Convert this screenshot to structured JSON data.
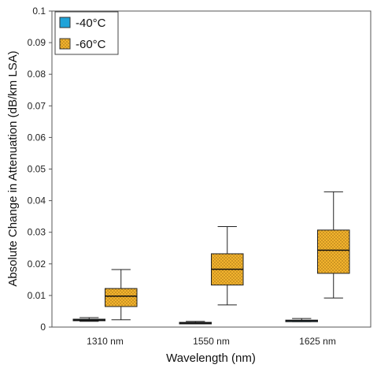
{
  "chart_data": {
    "type": "box",
    "title": "",
    "xlabel": "Wavelength (nm)",
    "ylabel": "Absolute Change in Attenuation (dB/km LSA)",
    "ylim": [
      0,
      0.1
    ],
    "yticks": [
      "0",
      "0.01",
      "0.02",
      "0.03",
      "0.04",
      "0.05",
      "0.06",
      "0.07",
      "0.08",
      "0.09",
      "0.1"
    ],
    "categories": [
      "1310 nm",
      "1550 nm",
      "1625 nm"
    ],
    "grid": false,
    "legend_position": "top-left",
    "series": [
      {
        "name": "-40°C",
        "color": "#1fa3d8",
        "boxes": [
          {
            "min": 0.0018,
            "q1": 0.002,
            "median": 0.0022,
            "q3": 0.0025,
            "max": 0.003
          },
          {
            "min": 0.001,
            "q1": 0.0012,
            "median": 0.0013,
            "q3": 0.0015,
            "max": 0.0018
          },
          {
            "min": 0.0017,
            "q1": 0.0019,
            "median": 0.002,
            "q3": 0.0022,
            "max": 0.0027
          }
        ]
      },
      {
        "name": "-60°C",
        "color": "#f2b32e",
        "pattern": "dotted",
        "boxes": [
          {
            "min": 0.0023,
            "q1": 0.0065,
            "median": 0.0098,
            "q3": 0.0122,
            "max": 0.0182
          },
          {
            "min": 0.007,
            "q1": 0.0133,
            "median": 0.0183,
            "q3": 0.0232,
            "max": 0.0318
          },
          {
            "min": 0.0092,
            "q1": 0.017,
            "median": 0.0243,
            "q3": 0.0307,
            "max": 0.0428
          }
        ]
      }
    ]
  }
}
